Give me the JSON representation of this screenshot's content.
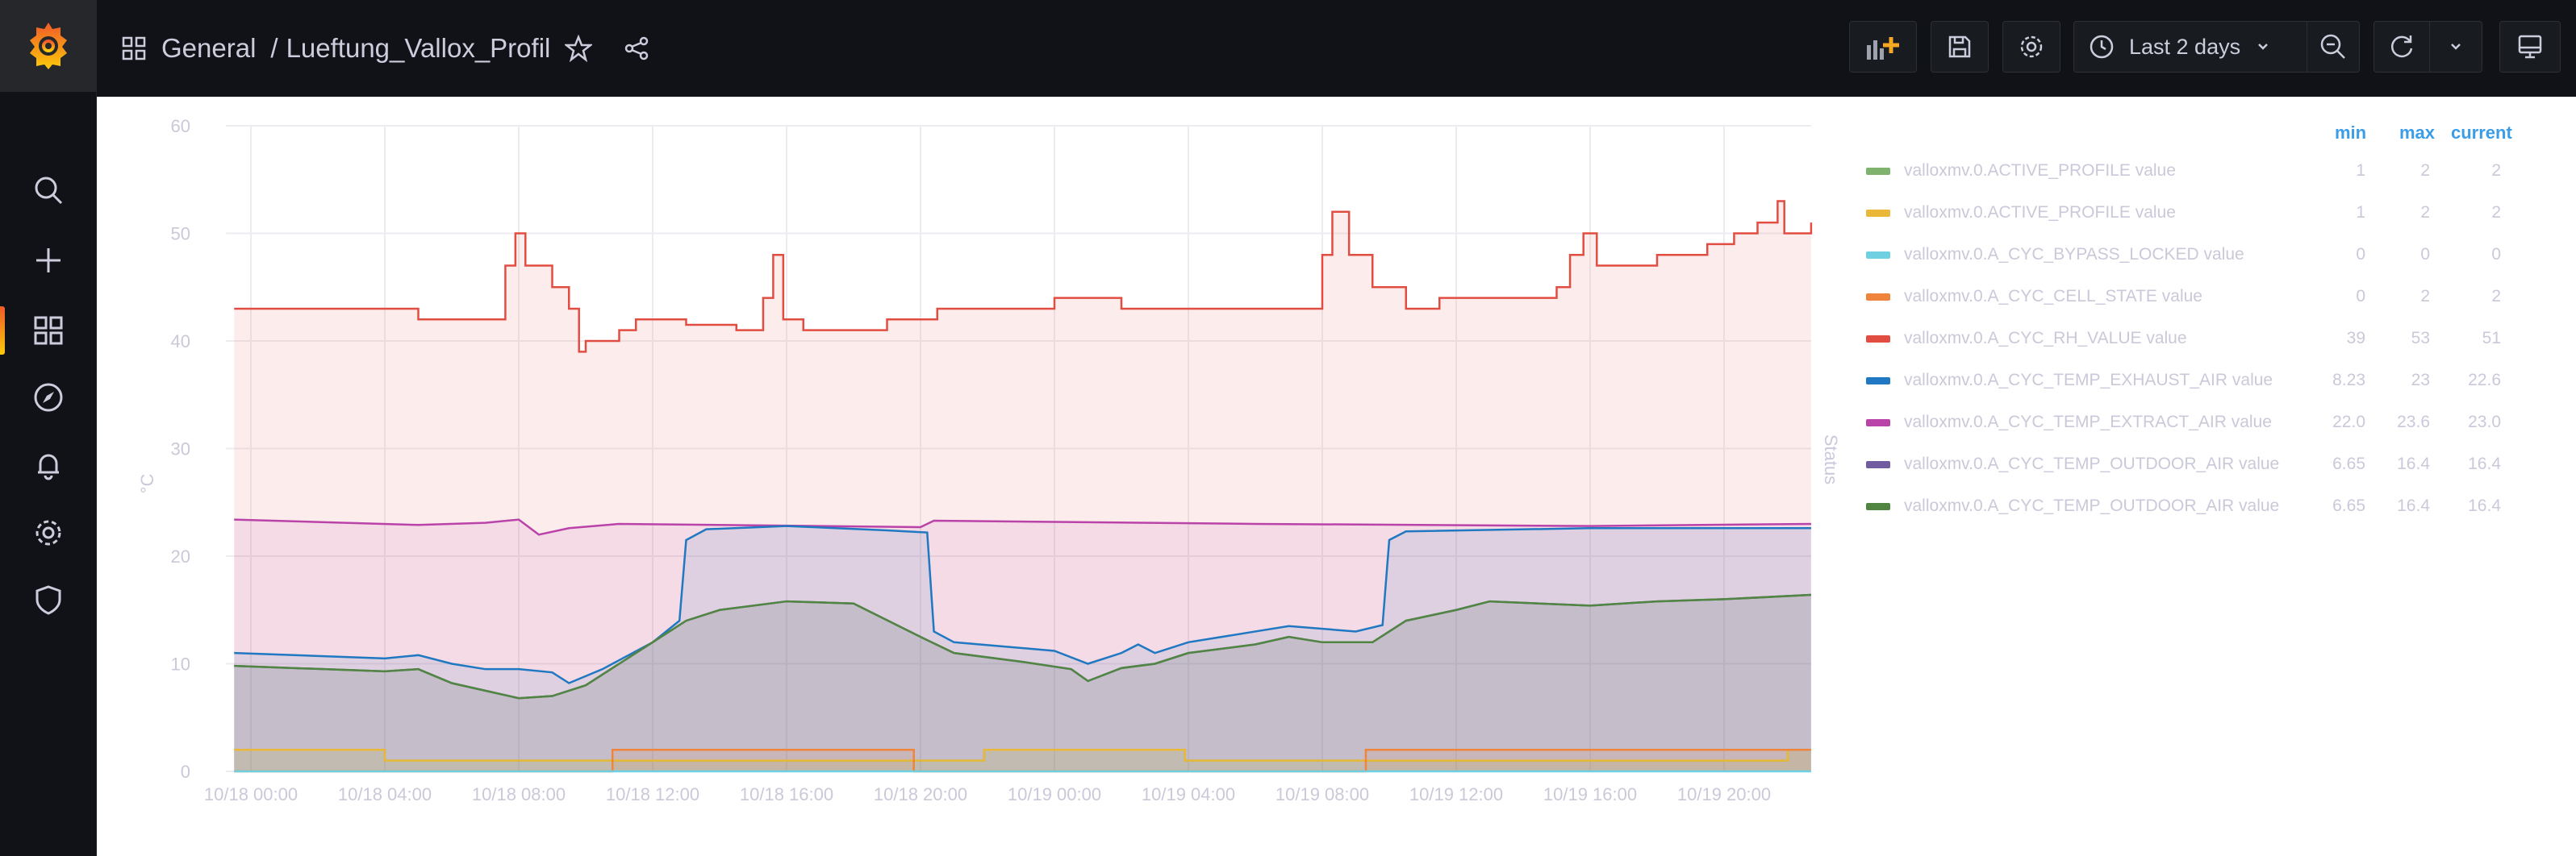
{
  "sidebar": {
    "items": [
      {
        "name": "search",
        "icon": "search-icon"
      },
      {
        "name": "create",
        "icon": "plus-icon"
      },
      {
        "name": "dashboards",
        "icon": "dashboards-icon",
        "active": true
      },
      {
        "name": "explore",
        "icon": "compass-icon"
      },
      {
        "name": "alerting",
        "icon": "bell-icon"
      },
      {
        "name": "configuration",
        "icon": "gear-icon"
      },
      {
        "name": "server-admin",
        "icon": "shield-icon"
      }
    ]
  },
  "header": {
    "folder": "General",
    "separator": "/",
    "title": "Lueftung_Vallox_Profil"
  },
  "toolbar": {
    "time_range": "Last 2 days"
  },
  "colors": {
    "accent": "#3b9de6",
    "topbar": "#111217"
  },
  "chart_data": {
    "type": "line",
    "ylabel": "°C",
    "right_label": "Status",
    "ylim": [
      0,
      60
    ],
    "yticks": [
      "0",
      "10",
      "20",
      "30",
      "40",
      "50",
      "60"
    ],
    "x_unit": "hours since 10/18 00:00",
    "xlim": [
      -0.5,
      46.6
    ],
    "xticks": [
      {
        "h": 0,
        "label": "10/18 00:00"
      },
      {
        "h": 4,
        "label": "10/18 04:00"
      },
      {
        "h": 8,
        "label": "10/18 08:00"
      },
      {
        "h": 12,
        "label": "10/18 12:00"
      },
      {
        "h": 16,
        "label": "10/18 16:00"
      },
      {
        "h": 20,
        "label": "10/18 20:00"
      },
      {
        "h": 24,
        "label": "10/19 00:00"
      },
      {
        "h": 28,
        "label": "10/19 04:00"
      },
      {
        "h": 32,
        "label": "10/19 08:00"
      },
      {
        "h": 36,
        "label": "10/19 12:00"
      },
      {
        "h": 40,
        "label": "10/19 16:00"
      },
      {
        "h": 44,
        "label": "10/19 20:00"
      }
    ],
    "legend_headers": {
      "min": "min",
      "max": "max",
      "current": "current"
    },
    "series": [
      {
        "name": "valloxmv.0.ACTIVE_PROFILE value",
        "color": "#7eb26d",
        "min": "1",
        "max": "2",
        "current": "2",
        "step": true,
        "points": [
          [
            -0.5,
            2
          ],
          [
            4,
            1
          ],
          [
            21.9,
            2
          ],
          [
            27.9,
            1
          ],
          [
            45.9,
            2
          ],
          [
            46.6,
            2
          ]
        ]
      },
      {
        "name": "valloxmv.0.ACTIVE_PROFILE value",
        "color": "#eab839",
        "min": "1",
        "max": "2",
        "current": "2",
        "step": true,
        "points": [
          [
            -0.5,
            2
          ],
          [
            4,
            1
          ],
          [
            21.9,
            2
          ],
          [
            27.9,
            1
          ],
          [
            45.9,
            2
          ],
          [
            46.6,
            2
          ]
        ]
      },
      {
        "name": "valloxmv.0.A_CYC_BYPASS_LOCKED value",
        "color": "#6ed0e0",
        "min": "0",
        "max": "0",
        "current": "0",
        "step": true,
        "points": [
          [
            -0.5,
            0
          ],
          [
            46.6,
            0
          ]
        ]
      },
      {
        "name": "valloxmv.0.A_CYC_CELL_STATE value",
        "color": "#ef843c",
        "min": "0",
        "max": "2",
        "current": "2",
        "step": true,
        "points": [
          [
            -0.5,
            0
          ],
          [
            10.8,
            2
          ],
          [
            19.8,
            0
          ],
          [
            33.3,
            2
          ],
          [
            46.6,
            2
          ]
        ]
      },
      {
        "name": "valloxmv.0.A_CYC_RH_VALUE value",
        "color": "#e24d42",
        "min": "39",
        "max": "53",
        "current": "51",
        "step": true,
        "points": [
          [
            -0.5,
            43
          ],
          [
            5,
            42
          ],
          [
            7.4,
            42
          ],
          [
            7.6,
            47
          ],
          [
            7.9,
            50
          ],
          [
            8.2,
            47
          ],
          [
            9,
            45
          ],
          [
            9.5,
            43
          ],
          [
            9.8,
            39
          ],
          [
            10,
            40
          ],
          [
            11,
            41
          ],
          [
            11.5,
            42
          ],
          [
            13,
            41.5
          ],
          [
            14.5,
            41
          ],
          [
            15.3,
            44
          ],
          [
            15.6,
            48
          ],
          [
            15.9,
            42
          ],
          [
            16.5,
            41
          ],
          [
            18.5,
            41
          ],
          [
            19,
            42
          ],
          [
            20.5,
            43
          ],
          [
            23.5,
            43
          ],
          [
            24,
            44
          ],
          [
            26,
            43
          ],
          [
            31.5,
            43
          ],
          [
            32,
            48
          ],
          [
            32.3,
            52
          ],
          [
            32.8,
            48
          ],
          [
            33.5,
            45
          ],
          [
            34.5,
            43
          ],
          [
            35.5,
            44
          ],
          [
            38.5,
            44
          ],
          [
            39,
            45
          ],
          [
            39.4,
            48
          ],
          [
            39.8,
            50
          ],
          [
            40.2,
            47
          ],
          [
            42,
            48
          ],
          [
            43.5,
            49
          ],
          [
            44.3,
            50
          ],
          [
            45,
            51
          ],
          [
            45.6,
            53
          ],
          [
            45.8,
            50
          ],
          [
            46.6,
            51
          ]
        ]
      },
      {
        "name": "valloxmv.0.A_CYC_TEMP_EXHAUST_AIR value",
        "color": "#1f78c1",
        "min": "8.23",
        "max": "23",
        "current": "22.6",
        "step": false,
        "points": [
          [
            -0.5,
            11
          ],
          [
            4,
            10.5
          ],
          [
            5,
            10.8
          ],
          [
            6,
            10
          ],
          [
            7,
            9.5
          ],
          [
            8,
            9.5
          ],
          [
            9,
            9.2
          ],
          [
            9.5,
            8.2
          ],
          [
            10.5,
            9.5
          ],
          [
            12,
            12
          ],
          [
            12.8,
            14
          ],
          [
            13,
            21.5
          ],
          [
            13.6,
            22.5
          ],
          [
            16,
            22.8
          ],
          [
            19,
            22.4
          ],
          [
            20.2,
            22.2
          ],
          [
            20.4,
            13
          ],
          [
            21,
            12
          ],
          [
            24,
            11.2
          ],
          [
            25,
            10
          ],
          [
            26,
            11
          ],
          [
            26.5,
            11.8
          ],
          [
            27,
            11
          ],
          [
            28,
            12
          ],
          [
            30,
            13
          ],
          [
            31,
            13.5
          ],
          [
            33,
            13
          ],
          [
            33.8,
            13.6
          ],
          [
            34,
            21.5
          ],
          [
            34.5,
            22.3
          ],
          [
            40,
            22.6
          ],
          [
            46.6,
            22.6
          ]
        ]
      },
      {
        "name": "valloxmv.0.A_CYC_TEMP_EXTRACT_AIR value",
        "color": "#ba43a9",
        "min": "22.0",
        "max": "23.6",
        "current": "23.0",
        "step": false,
        "points": [
          [
            -0.5,
            23.4
          ],
          [
            5,
            22.9
          ],
          [
            7,
            23.1
          ],
          [
            8,
            23.4
          ],
          [
            8.6,
            22.0
          ],
          [
            9.5,
            22.6
          ],
          [
            11,
            23
          ],
          [
            20,
            22.7
          ],
          [
            20.4,
            23.3
          ],
          [
            30,
            23
          ],
          [
            40,
            22.8
          ],
          [
            46.6,
            23
          ]
        ]
      },
      {
        "name": "valloxmv.0.A_CYC_TEMP_OUTDOOR_AIR value",
        "color": "#705da0",
        "min": "6.65",
        "max": "16.4",
        "current": "16.4",
        "step": false,
        "points": [
          [
            -0.5,
            9.8
          ],
          [
            4,
            9.3
          ],
          [
            5,
            9.5
          ],
          [
            6,
            8.2
          ],
          [
            7,
            7.5
          ],
          [
            8,
            6.8
          ],
          [
            9,
            7
          ],
          [
            10,
            8
          ],
          [
            11,
            10
          ],
          [
            12,
            12
          ],
          [
            13,
            14
          ],
          [
            14,
            15
          ],
          [
            16,
            15.8
          ],
          [
            18,
            15.6
          ],
          [
            20,
            12.5
          ],
          [
            21,
            11
          ],
          [
            23,
            10.2
          ],
          [
            24.5,
            9.5
          ],
          [
            25,
            8.4
          ],
          [
            26,
            9.6
          ],
          [
            27,
            10
          ],
          [
            28,
            11
          ],
          [
            30,
            11.8
          ],
          [
            31,
            12.5
          ],
          [
            32,
            12
          ],
          [
            33.5,
            12
          ],
          [
            34.5,
            14
          ],
          [
            36,
            15
          ],
          [
            37,
            15.8
          ],
          [
            40,
            15.4
          ],
          [
            42,
            15.8
          ],
          [
            44,
            16
          ],
          [
            46.6,
            16.4
          ]
        ]
      },
      {
        "name": "valloxmv.0.A_CYC_TEMP_OUTDOOR_AIR value",
        "color": "#508642",
        "min": "6.65",
        "max": "16.4",
        "current": "16.4",
        "step": false,
        "points": [
          [
            -0.5,
            9.8
          ],
          [
            4,
            9.3
          ],
          [
            5,
            9.5
          ],
          [
            6,
            8.2
          ],
          [
            7,
            7.5
          ],
          [
            8,
            6.8
          ],
          [
            9,
            7
          ],
          [
            10,
            8
          ],
          [
            11,
            10
          ],
          [
            12,
            12
          ],
          [
            13,
            14
          ],
          [
            14,
            15
          ],
          [
            16,
            15.8
          ],
          [
            18,
            15.6
          ],
          [
            20,
            12.5
          ],
          [
            21,
            11
          ],
          [
            23,
            10.2
          ],
          [
            24.5,
            9.5
          ],
          [
            25,
            8.4
          ],
          [
            26,
            9.6
          ],
          [
            27,
            10
          ],
          [
            28,
            11
          ],
          [
            30,
            11.8
          ],
          [
            31,
            12.5
          ],
          [
            32,
            12
          ],
          [
            33.5,
            12
          ],
          [
            34.5,
            14
          ],
          [
            36,
            15
          ],
          [
            37,
            15.8
          ],
          [
            40,
            15.4
          ],
          [
            42,
            15.8
          ],
          [
            44,
            16
          ],
          [
            46.6,
            16.4
          ]
        ]
      }
    ]
  }
}
